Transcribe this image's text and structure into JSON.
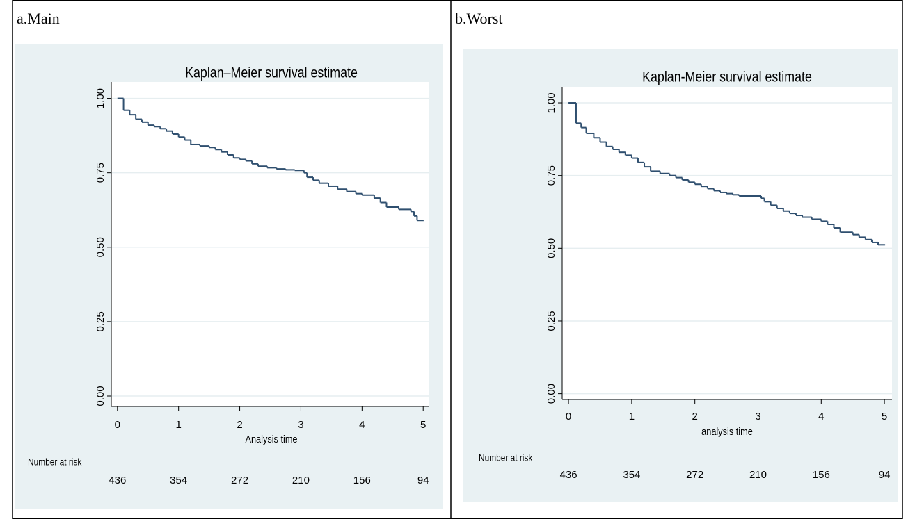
{
  "chart_data": [
    {
      "type": "line",
      "step": true,
      "panel_label": "a.Main",
      "title": "Kaplan–Meier survival estimate",
      "xlabel": "Analysis time",
      "color": "#2f4f6f",
      "grid": true,
      "xlim": [
        -0.1,
        5.1
      ],
      "xticks": [
        0,
        1,
        2,
        3,
        4,
        5
      ],
      "ylim": [
        -0.035,
        1.055
      ],
      "yticks": [
        {
          "value": 0,
          "label": "0.00"
        },
        {
          "value": 0.25,
          "label": "0.25"
        },
        {
          "value": 0.5,
          "label": "0.50"
        },
        {
          "value": 0.75,
          "label": "0.75"
        },
        {
          "value": 1,
          "label": "1.00"
        }
      ],
      "x": [
        0,
        0.1,
        0.2,
        0.3,
        0.4,
        0.5,
        0.6,
        0.7,
        0.8,
        0.9,
        1.0,
        1.1,
        1.2,
        1.35,
        1.5,
        1.6,
        1.7,
        1.8,
        1.9,
        2.0,
        2.1,
        2.2,
        2.3,
        2.45,
        2.6,
        2.75,
        2.9,
        3.05,
        3.1,
        3.2,
        3.3,
        3.45,
        3.6,
        3.75,
        3.9,
        4.0,
        4.2,
        4.3,
        4.4,
        4.6,
        4.8,
        4.85,
        4.9,
        5.0
      ],
      "values": [
        1.0,
        0.96,
        0.945,
        0.93,
        0.92,
        0.91,
        0.905,
        0.898,
        0.89,
        0.88,
        0.87,
        0.86,
        0.845,
        0.84,
        0.835,
        0.828,
        0.82,
        0.81,
        0.8,
        0.795,
        0.79,
        0.78,
        0.772,
        0.767,
        0.763,
        0.76,
        0.758,
        0.75,
        0.735,
        0.725,
        0.715,
        0.705,
        0.695,
        0.687,
        0.68,
        0.675,
        0.665,
        0.65,
        0.635,
        0.627,
        0.62,
        0.605,
        0.59,
        0.59
      ],
      "risk_label": "Number at risk",
      "number_at_risk": [
        436,
        354,
        272,
        210,
        156,
        94
      ]
    },
    {
      "type": "line",
      "step": true,
      "panel_label": "b.Worst",
      "title": "Kaplan-Meier survival estimate",
      "xlabel": "analysis time",
      "color": "#2f4f6f",
      "grid": true,
      "xlim": [
        -0.1,
        5.12
      ],
      "xticks": [
        0,
        1,
        2,
        3,
        4,
        5
      ],
      "ylim": [
        -0.02,
        1.055
      ],
      "yticks": [
        {
          "value": 0,
          "label": "0.00"
        },
        {
          "value": 0.25,
          "label": "0.25"
        },
        {
          "value": 0.5,
          "label": "0.50"
        },
        {
          "value": 0.75,
          "label": "0.75"
        },
        {
          "value": 1,
          "label": "1.00"
        }
      ],
      "x": [
        0,
        0.12,
        0.2,
        0.28,
        0.4,
        0.5,
        0.6,
        0.7,
        0.8,
        0.9,
        1.0,
        1.1,
        1.2,
        1.3,
        1.45,
        1.6,
        1.7,
        1.8,
        1.9,
        2.0,
        2.1,
        2.2,
        2.3,
        2.4,
        2.5,
        2.6,
        2.7,
        3.05,
        3.1,
        3.2,
        3.3,
        3.4,
        3.5,
        3.6,
        3.7,
        3.85,
        4.0,
        4.1,
        4.2,
        4.3,
        4.5,
        4.6,
        4.7,
        4.8,
        4.9,
        5.0
      ],
      "values": [
        1.0,
        0.93,
        0.915,
        0.895,
        0.88,
        0.865,
        0.85,
        0.84,
        0.83,
        0.82,
        0.81,
        0.795,
        0.78,
        0.765,
        0.757,
        0.75,
        0.743,
        0.735,
        0.727,
        0.72,
        0.713,
        0.705,
        0.698,
        0.692,
        0.688,
        0.684,
        0.68,
        0.672,
        0.66,
        0.648,
        0.637,
        0.628,
        0.62,
        0.613,
        0.607,
        0.6,
        0.593,
        0.582,
        0.57,
        0.555,
        0.547,
        0.538,
        0.53,
        0.52,
        0.512,
        0.512
      ],
      "risk_label": "Number at risk",
      "number_at_risk": [
        436,
        354,
        272,
        210,
        156,
        94
      ]
    }
  ]
}
